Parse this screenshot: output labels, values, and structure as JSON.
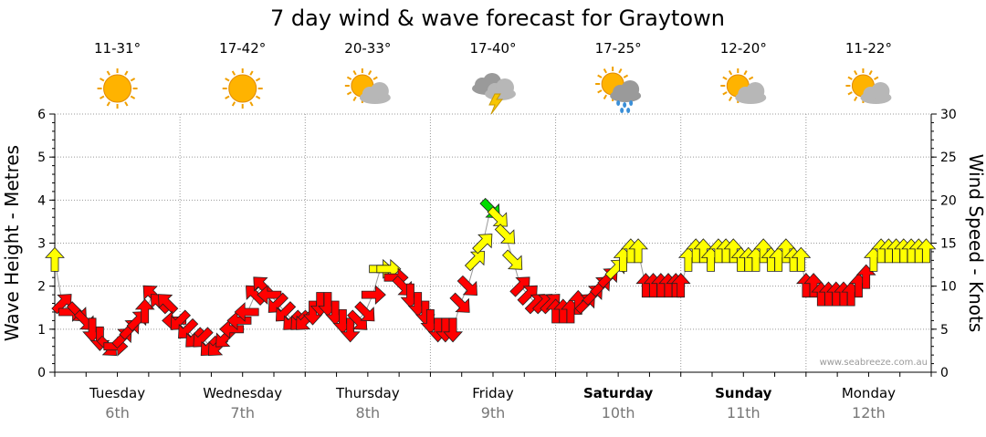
{
  "chart_data": {
    "type": "line",
    "title": "7 day wind & wave forecast for Graytown",
    "watermark": "www.seabreeze.com.au",
    "y_left": {
      "label": "Wave Height - Metres",
      "range": [
        0,
        6
      ],
      "ticks": [
        "0",
        "1",
        "2",
        "3",
        "4",
        "5",
        "6"
      ]
    },
    "y_right": {
      "label": "Wind Speed - Knots",
      "range": [
        0,
        30
      ],
      "ticks": [
        "0",
        "5",
        "10",
        "15",
        "20",
        "25",
        "30"
      ]
    },
    "days": [
      {
        "name": "Tuesday",
        "date": "6th",
        "temp": "11-31°",
        "icon": "sunny-icon",
        "bold": false
      },
      {
        "name": "Wednesday",
        "date": "7th",
        "temp": "17-42°",
        "icon": "sunny-icon",
        "bold": false
      },
      {
        "name": "Thursday",
        "date": "8th",
        "temp": "20-33°",
        "icon": "partly-cloudy-icon",
        "bold": false
      },
      {
        "name": "Friday",
        "date": "9th",
        "temp": "17-40°",
        "icon": "thunderstorm-icon",
        "bold": false
      },
      {
        "name": "Saturday",
        "date": "10th",
        "temp": "17-25°",
        "icon": "sun-shower-icon",
        "bold": true
      },
      {
        "name": "Sunday",
        "date": "11th",
        "temp": "12-20°",
        "icon": "partly-cloudy-icon",
        "bold": true
      },
      {
        "name": "Monday",
        "date": "12th",
        "temp": "11-22°",
        "icon": "partly-cloudy-icon",
        "bold": false
      }
    ],
    "colors": {
      "light": "#ff0000",
      "moderate": "#ffff00",
      "strong": "#00dd00",
      "grid": "#999999",
      "wave_line": "#999999"
    },
    "wind_series": {
      "name": "Wind",
      "t": [
        0.0,
        0.06,
        0.12,
        0.18,
        0.24,
        0.3,
        0.36,
        0.42,
        0.48,
        0.54,
        0.6,
        0.66,
        0.72,
        0.78,
        0.84,
        0.9,
        0.96,
        1.0,
        1.06,
        1.12,
        1.18,
        1.24,
        1.3,
        1.36,
        1.42,
        1.48,
        1.54,
        1.6,
        1.66,
        1.72,
        1.78,
        1.84,
        1.9,
        1.96,
        2.0,
        2.06,
        2.12,
        2.18,
        2.24,
        2.3,
        2.36,
        2.42,
        2.48,
        2.54,
        2.6,
        2.66,
        2.72,
        2.78,
        2.84,
        2.9,
        2.96,
        3.0,
        3.06,
        3.12,
        3.18,
        3.24,
        3.3,
        3.36,
        3.42,
        3.48,
        3.54,
        3.6,
        3.66,
        3.72,
        3.78,
        3.84,
        3.9,
        3.96,
        4.0,
        4.06,
        4.12,
        4.18,
        4.24,
        4.3,
        4.36,
        4.42,
        4.48,
        4.54,
        4.6,
        4.66,
        4.72,
        4.78,
        4.84,
        4.9,
        4.96,
        5.0,
        5.06,
        5.12,
        5.18,
        5.24,
        5.3,
        5.36,
        5.42,
        5.48,
        5.54,
        5.6,
        5.66,
        5.72,
        5.78,
        5.84,
        5.9,
        5.96,
        6.0,
        6.06,
        6.12,
        6.18,
        6.24,
        6.3,
        6.36,
        6.42,
        6.48,
        6.54,
        6.6,
        6.66,
        6.72,
        6.78,
        6.84,
        6.9,
        6.96
      ],
      "speed": [
        13,
        8,
        7,
        7,
        6,
        5,
        4,
        3,
        3,
        4,
        5,
        6,
        7,
        9,
        8,
        8,
        6,
        6,
        5,
        4,
        4,
        3,
        3,
        4,
        5,
        6,
        7,
        9,
        10,
        9,
        8,
        7,
        6,
        6,
        6,
        7,
        8,
        8,
        7,
        6,
        5,
        6,
        7,
        9,
        12,
        12,
        11,
        10,
        9,
        8,
        7,
        6,
        5,
        5,
        5,
        8,
        10,
        13,
        15,
        19,
        18,
        16,
        13,
        10,
        9,
        8,
        8,
        8,
        7,
        7,
        7,
        8,
        8,
        9,
        10,
        11,
        12,
        13,
        14,
        14,
        10,
        10,
        10,
        10,
        10,
        10,
        13,
        14,
        14,
        13,
        14,
        14,
        14,
        13,
        13,
        13,
        14,
        13,
        13,
        14,
        13,
        13,
        10,
        10,
        9,
        9,
        9,
        9,
        9,
        10,
        11,
        13,
        14,
        14,
        14,
        14,
        14,
        14,
        14
      ],
      "dir": [
        0,
        45,
        90,
        135,
        135,
        180,
        180,
        135,
        90,
        45,
        45,
        45,
        0,
        315,
        315,
        315,
        270,
        225,
        225,
        225,
        225,
        225,
        225,
        225,
        270,
        270,
        270,
        315,
        315,
        270,
        225,
        225,
        225,
        225,
        225,
        180,
        180,
        180,
        180,
        180,
        180,
        135,
        135,
        90,
        90,
        90,
        90,
        135,
        180,
        180,
        180,
        180,
        180,
        180,
        180,
        135,
        135,
        45,
        45,
        135,
        135,
        135,
        135,
        45,
        45,
        45,
        45,
        45,
        0,
        0,
        0,
        0,
        45,
        45,
        45,
        45,
        45,
        0,
        0,
        0,
        0,
        0,
        0,
        0,
        0,
        0,
        0,
        0,
        0,
        0,
        0,
        0,
        0,
        0,
        0,
        0,
        0,
        0,
        0,
        0,
        0,
        0,
        0,
        0,
        0,
        0,
        0,
        0,
        0,
        0,
        0,
        0,
        0,
        0,
        0,
        0,
        0,
        0,
        0
      ]
    }
  }
}
